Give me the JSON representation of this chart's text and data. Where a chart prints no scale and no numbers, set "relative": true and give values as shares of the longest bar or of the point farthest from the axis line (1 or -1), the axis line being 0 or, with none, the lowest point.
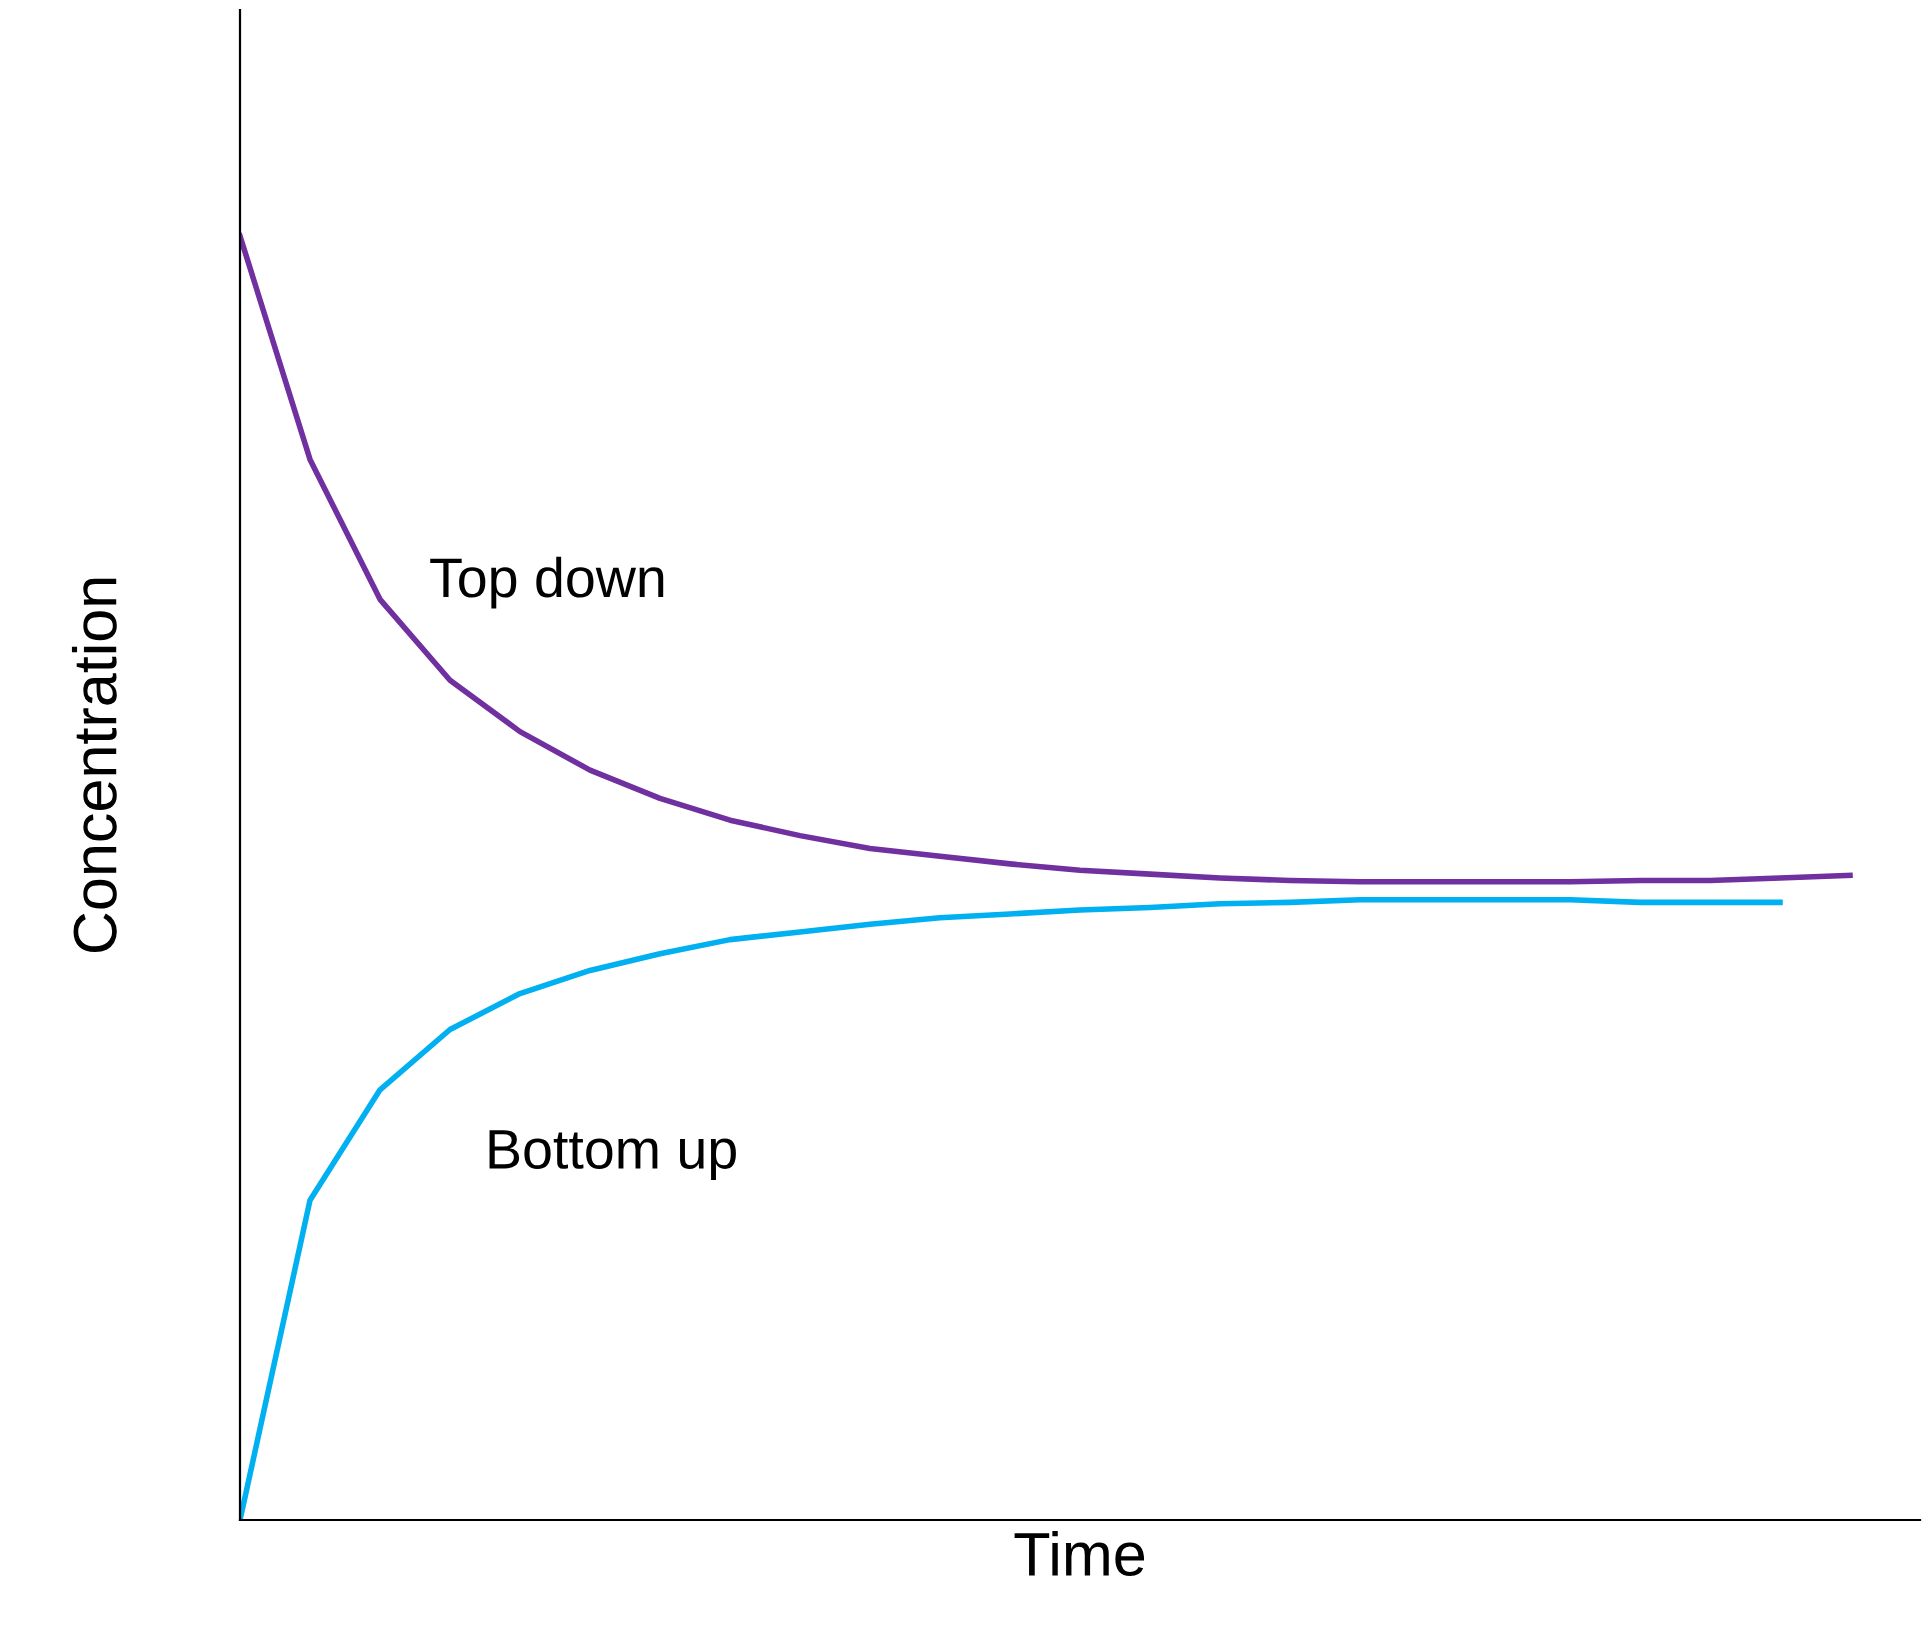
{
  "chart_data": {
    "type": "line",
    "relative": true,
    "xlabel": "Time",
    "ylabel": "Concentration",
    "marker": "none",
    "line_style": "solid",
    "categories": [
      null,
      null,
      null,
      null,
      null,
      null,
      null,
      null,
      null,
      null,
      null,
      null,
      null,
      null,
      null,
      null,
      null,
      null,
      null,
      null,
      null,
      null,
      null,
      null
    ],
    "series": [
      {
        "name": "Top down",
        "color": "#7030a0",
        "values": [
          1.0,
          0.826,
          0.717,
          0.654,
          0.614,
          0.584,
          0.562,
          0.545,
          0.533,
          0.523,
          0.517,
          0.511,
          0.506,
          0.503,
          0.5,
          0.498,
          0.497,
          0.497,
          0.497,
          0.497,
          0.498,
          0.498,
          0.5,
          0.502
        ]
      },
      {
        "name": "Bottom up",
        "color": "#00b0f0",
        "values": [
          0.0,
          0.249,
          0.335,
          0.382,
          0.41,
          0.428,
          0.441,
          0.452,
          0.458,
          0.464,
          0.469,
          0.472,
          0.475,
          0.477,
          0.48,
          0.481,
          0.483,
          0.483,
          0.483,
          0.483,
          0.481,
          0.481,
          0.481,
          null
        ]
      }
    ]
  }
}
